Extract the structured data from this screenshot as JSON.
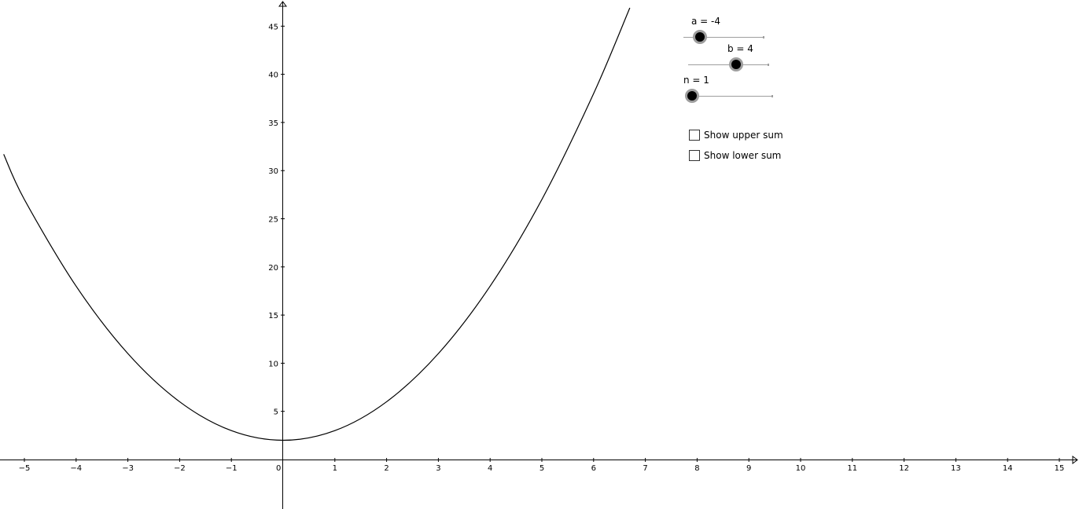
{
  "sliders": [
    {
      "id": "a",
      "label": "a = -4"
    },
    {
      "id": "b",
      "label": "b = 4"
    },
    {
      "id": "n",
      "label": "n = 1"
    }
  ],
  "checkboxes": [
    {
      "label": "Show upper sum",
      "checked": false
    },
    {
      "label": "Show lower sum",
      "checked": false
    }
  ],
  "chart_data": {
    "type": "line",
    "xlim": [
      -5.4,
      15.4
    ],
    "ylim": [
      -5,
      48
    ],
    "x_ticks": [
      -5,
      -4,
      -3,
      -2,
      -1,
      0,
      1,
      2,
      3,
      4,
      5,
      6,
      7,
      8,
      9,
      10,
      11,
      12,
      13,
      14,
      15
    ],
    "y_ticks": [
      5,
      10,
      15,
      20,
      25,
      30,
      35,
      40,
      45
    ],
    "grid": false,
    "series": [
      {
        "x": [
          -5.4,
          -5,
          -4,
          -3,
          -2,
          -1,
          0,
          1,
          2,
          3,
          4,
          5,
          6,
          6.7
        ],
        "y": [
          31.7,
          27,
          18,
          11,
          6,
          3,
          2,
          3,
          6,
          11,
          18,
          27,
          38,
          46.9
        ]
      }
    ]
  }
}
